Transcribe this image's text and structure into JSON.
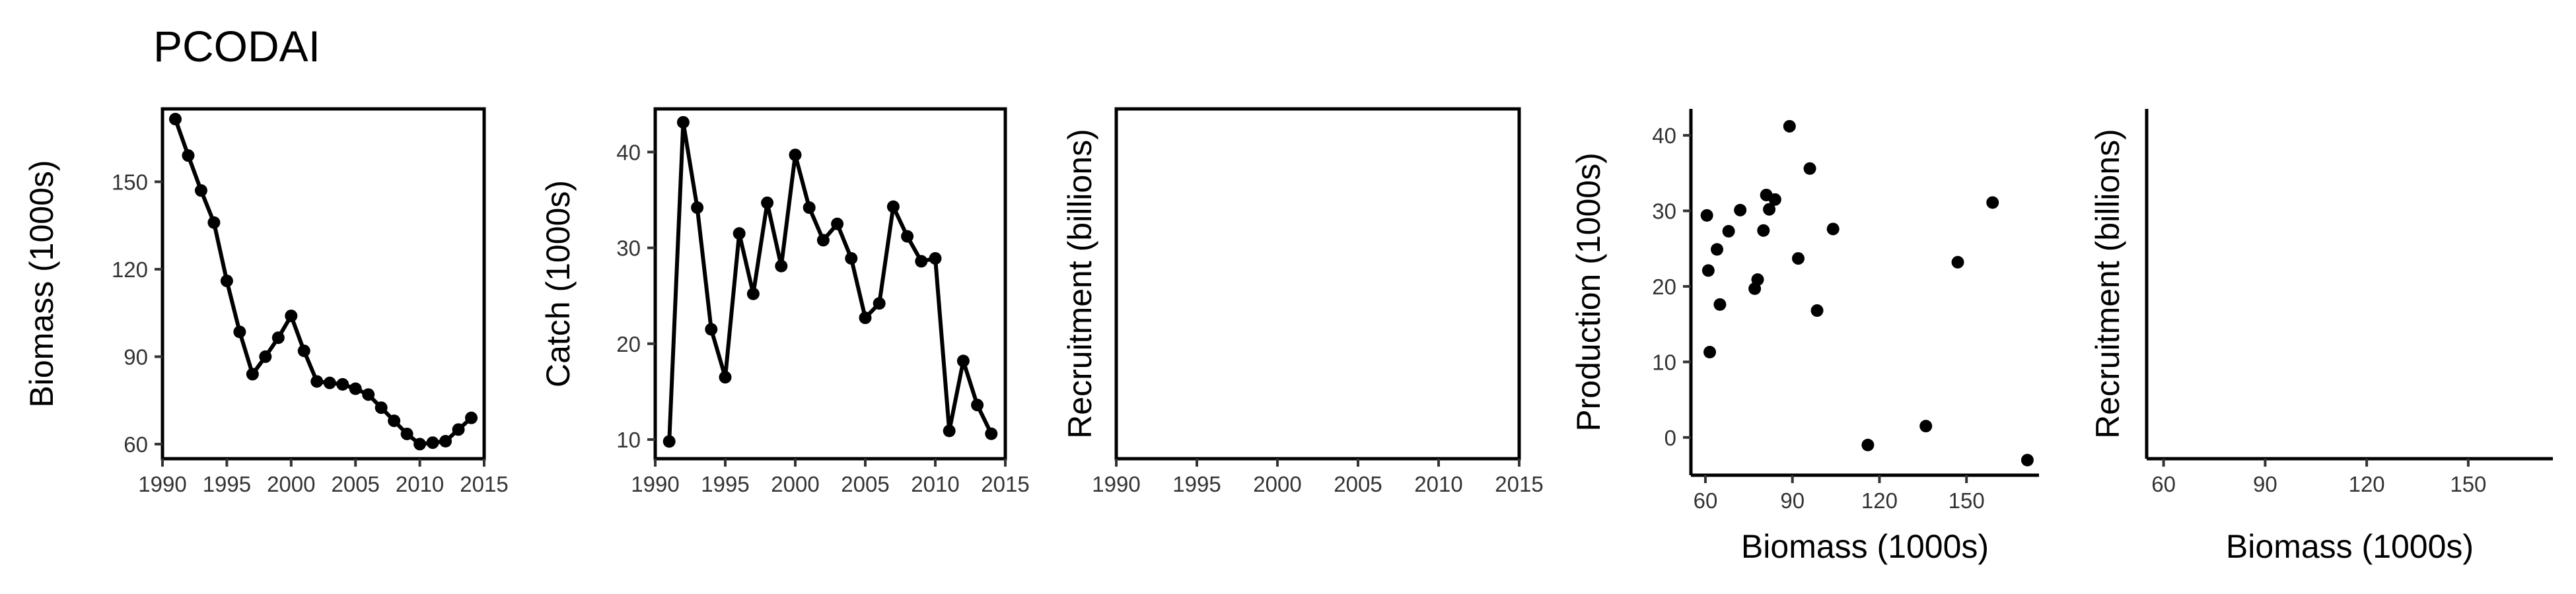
{
  "title": "PCODAI",
  "chart_data": [
    {
      "type": "line",
      "xlabel": "",
      "ylabel": "Biomass (1000s)",
      "xlim": [
        1990,
        2015
      ],
      "ylim": [
        55,
        175
      ],
      "xticks": [
        1990,
        1995,
        2000,
        2005,
        2010,
        2015
      ],
      "yticks": [
        60,
        90,
        120,
        150
      ],
      "frame": "box",
      "x": [
        1991,
        1992,
        1993,
        1994,
        1995,
        1996,
        1997,
        1998,
        1999,
        2000,
        2001,
        2002,
        2003,
        2004,
        2005,
        2006,
        2007,
        2008,
        2009,
        2010,
        2011,
        2012,
        2013,
        2014
      ],
      "y": [
        171.5,
        159,
        147,
        136,
        116,
        98.5,
        84,
        90,
        96.5,
        104,
        92,
        81.5,
        81,
        80.5,
        79,
        77,
        72.5,
        68,
        63.5,
        60,
        60.5,
        61,
        65,
        69
      ]
    },
    {
      "type": "line",
      "xlabel": "",
      "ylabel": "Catch (1000s)",
      "xlim": [
        1990,
        2015
      ],
      "ylim": [
        8,
        44.5
      ],
      "xticks": [
        1990,
        1995,
        2000,
        2005,
        2010,
        2015
      ],
      "yticks": [
        10,
        20,
        30,
        40
      ],
      "frame": "box",
      "x": [
        1991,
        1992,
        1993,
        1994,
        1995,
        1996,
        1997,
        1998,
        1999,
        2000,
        2001,
        2002,
        2003,
        2004,
        2005,
        2006,
        2007,
        2008,
        2009,
        2010,
        2011,
        2012,
        2013,
        2014
      ],
      "y": [
        9.8,
        43.1,
        34.2,
        21.5,
        16.5,
        31.5,
        25.2,
        34.7,
        28.1,
        39.7,
        34.2,
        30.8,
        32.5,
        28.9,
        22.7,
        24.2,
        34.3,
        31.2,
        28.6,
        28.9,
        10.9,
        18.2,
        13.6,
        10.6
      ]
    },
    {
      "type": "line",
      "xlabel": "",
      "ylabel": "Recruitment (billions)",
      "xlim": [
        1990,
        2015
      ],
      "xticks": [
        1990,
        1995,
        2000,
        2005,
        2010,
        2015
      ],
      "yticks": [],
      "frame": "box",
      "x": [],
      "y": []
    },
    {
      "type": "scatter",
      "xlabel": "Biomass (1000s)",
      "ylabel": "Production (1000s)",
      "xlim": [
        55,
        175
      ],
      "ylim": [
        -5,
        43.5
      ],
      "xticks": [
        60,
        90,
        120,
        150
      ],
      "yticks": [
        0,
        10,
        20,
        30,
        40
      ],
      "frame": "axes",
      "x": [
        60.5,
        61,
        61.5,
        64,
        65,
        68,
        72,
        77,
        78,
        80,
        81,
        82,
        84,
        89,
        92,
        96,
        98.5,
        104,
        116,
        136,
        147,
        159,
        171
      ],
      "y": [
        29.4,
        22.1,
        11.3,
        24.9,
        17.6,
        27.3,
        30.1,
        19.7,
        20.9,
        27.4,
        32.1,
        30.2,
        31.5,
        41.2,
        23.7,
        35.6,
        16.8,
        27.6,
        -1,
        1.5,
        23.2,
        31.1,
        -3
      ]
    },
    {
      "type": "scatter",
      "xlabel": "Biomass (1000s)",
      "ylabel": "Recruitment (billions)",
      "xlim": [
        55,
        175
      ],
      "xticks": [
        60,
        90,
        120,
        150
      ],
      "yticks": [],
      "frame": "axes",
      "x": [],
      "y": []
    }
  ]
}
